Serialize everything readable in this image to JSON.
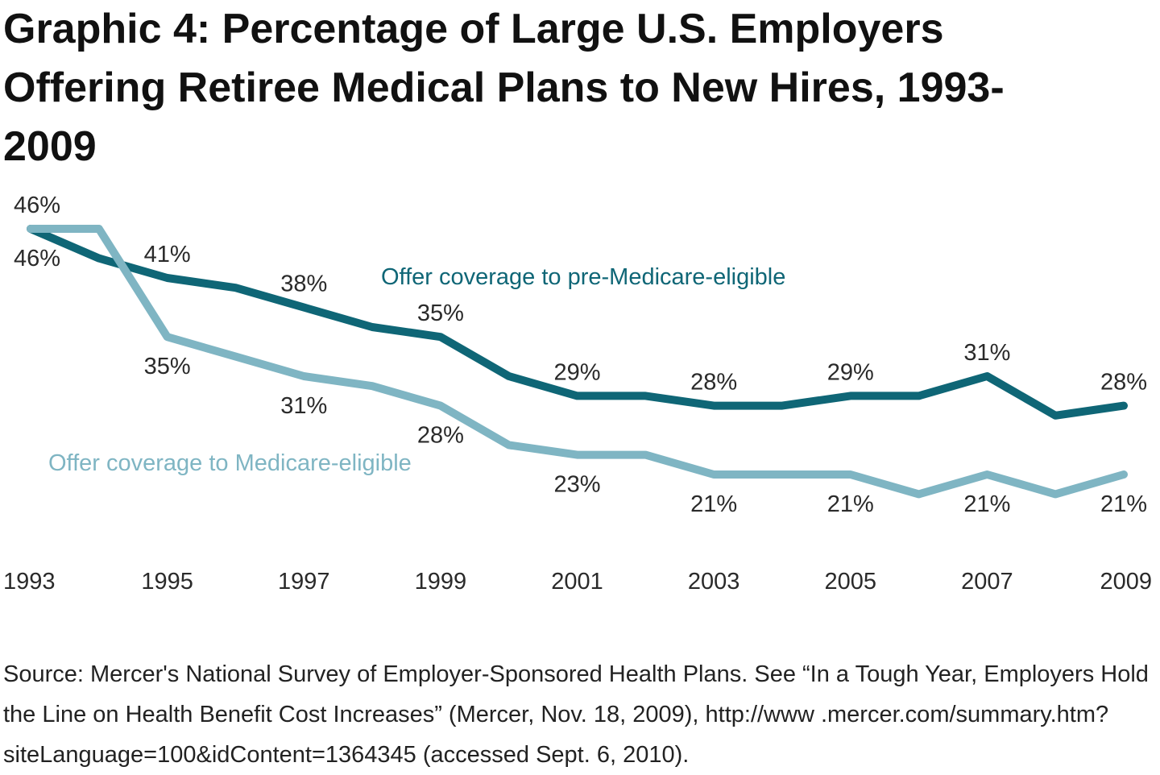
{
  "chart_data": {
    "type": "line",
    "title": "Graphic 4: Percentage of Large U.S. Employers Offering Retiree Medical Plans to New Hires, 1993-2009",
    "x": [
      1993,
      1994,
      1995,
      1996,
      1997,
      1998,
      1999,
      2000,
      2001,
      2002,
      2003,
      2004,
      2005,
      2006,
      2007,
      2008,
      2009
    ],
    "xticks": [
      "1993",
      "1995",
      "1997",
      "1999",
      "2001",
      "2003",
      "2005",
      "2007",
      "2009"
    ],
    "ylim": [
      15,
      50
    ],
    "grid": false,
    "series": [
      {
        "name": "Offer coverage to pre-Medicare-eligible",
        "color": "#0f6676",
        "values": [
          46,
          43,
          41,
          40,
          38,
          36,
          35,
          31,
          29,
          29,
          28,
          28,
          29,
          29,
          31,
          27,
          28
        ]
      },
      {
        "name": "Offer coverage to Medicare-eligible",
        "color": "#7fb5c3",
        "values": [
          46,
          46,
          35,
          33,
          31,
          30,
          28,
          24,
          23,
          23,
          21,
          21,
          21,
          19,
          21,
          19,
          21
        ]
      }
    ],
    "labeled_years": [
      1993,
      1995,
      1997,
      1999,
      2001,
      2003,
      2005,
      2007,
      2009
    ]
  },
  "source": "Source: Mercer's National Survey of Employer-Sponsored Health Plans. See “In a Tough Year, Employers Hold the Line on Health Benefit Cost Increases” (Mercer, Nov. 18, 2009), http://www .mercer.com/summary.htm?siteLanguage=100&idContent=1364345 (accessed Sept. 6, 2010)."
}
